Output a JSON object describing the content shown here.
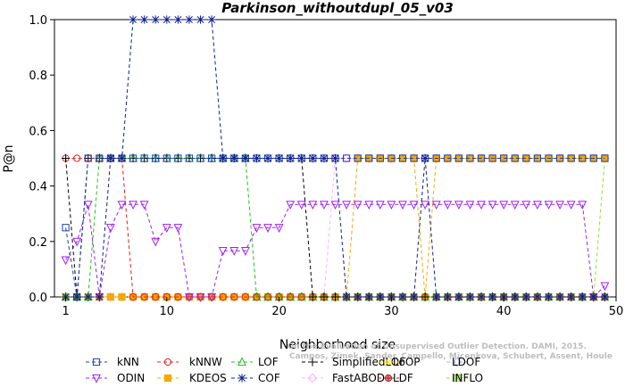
{
  "chart_data": {
    "type": "line",
    "title": "Parkinson_withoutdupl_05_v03",
    "xlabel": "Neighborhood size",
    "ylabel": "P@n",
    "xlim": [
      0,
      50
    ],
    "ylim": [
      0,
      1.0
    ],
    "x_ticks": [
      1,
      10,
      20,
      30,
      40,
      50
    ],
    "y_ticks": [
      0.0,
      0.2,
      0.4,
      0.6,
      0.8,
      1.0
    ],
    "y_tick_labels": [
      "0.0",
      "0.2",
      "0.4",
      "0.6",
      "0.8",
      "1.0"
    ],
    "x_tick_labels": [
      "1",
      "10",
      "20",
      "30",
      "40",
      "50"
    ],
    "grid": false,
    "legend_position": "bottom",
    "x": [
      1,
      2,
      3,
      4,
      5,
      6,
      7,
      8,
      9,
      10,
      11,
      12,
      13,
      14,
      15,
      16,
      17,
      18,
      19,
      20,
      21,
      22,
      23,
      24,
      25,
      26,
      27,
      28,
      29,
      30,
      31,
      32,
      33,
      34,
      35,
      36,
      37,
      38,
      39,
      40,
      41,
      42,
      43,
      44,
      45,
      46,
      47,
      48,
      49
    ],
    "series": [
      {
        "name": "kNN",
        "color": "#1a3fb0",
        "marker": "square",
        "values": [
          0.25,
          0,
          0.5,
          0.5,
          0.5,
          0.5,
          0.5,
          0.5,
          0.5,
          0.5,
          0.5,
          0.5,
          0.5,
          0.5,
          0.5,
          0.5,
          0.5,
          0.5,
          0.5,
          0.5,
          0.5,
          0.5,
          0.5,
          0.5,
          0.5,
          0.5,
          0.5,
          0.5,
          0.5,
          0.5,
          0.5,
          0.5,
          0.5,
          0.5,
          0.5,
          0.5,
          0.5,
          0.5,
          0.5,
          0.5,
          0.5,
          0.5,
          0.5,
          0.5,
          0.5,
          0.5,
          0.5,
          0.5,
          0.5
        ]
      },
      {
        "name": "kNNW",
        "color": "#e0201b",
        "marker": "circle",
        "values": [
          0.5,
          0.5,
          0.5,
          0.5,
          0.5,
          0.5,
          0,
          0,
          0,
          0,
          0,
          0,
          0,
          0,
          0,
          0,
          0,
          0,
          0,
          0,
          0,
          0,
          0,
          0,
          0,
          0,
          0,
          0,
          0,
          0,
          0,
          0,
          0,
          0,
          0,
          0,
          0,
          0,
          0,
          0,
          0,
          0,
          0,
          0,
          0,
          0,
          0,
          0,
          0
        ]
      },
      {
        "name": "LOF",
        "color": "#1fc21f",
        "marker": "triangle-up",
        "values": [
          0,
          0,
          0,
          0.5,
          0.5,
          0.5,
          0.5,
          0.5,
          0.5,
          0.5,
          0.5,
          0.5,
          0.5,
          0.5,
          0.5,
          0.5,
          0.5,
          0,
          0,
          0,
          0,
          0,
          0,
          0,
          0,
          0,
          0,
          0,
          0,
          0,
          0,
          0,
          0,
          0,
          0,
          0,
          0,
          0,
          0,
          0,
          0,
          0,
          0,
          0,
          0,
          0,
          0,
          0,
          0
        ]
      },
      {
        "name": "SimplifiedLOF",
        "color": "#000000",
        "marker": "plus",
        "values": [
          0.5,
          0,
          0.5,
          0.5,
          0.5,
          0.5,
          0.5,
          0.5,
          0.5,
          0.5,
          0.5,
          0.5,
          0.5,
          0.5,
          0.5,
          0.5,
          0.5,
          0.5,
          0.5,
          0.5,
          0.5,
          0.5,
          0,
          0,
          0,
          0,
          0,
          0,
          0,
          0,
          0,
          0,
          0,
          0,
          0,
          0,
          0,
          0,
          0,
          0,
          0,
          0,
          0,
          0,
          0,
          0,
          0,
          0,
          0
        ]
      },
      {
        "name": "LoOP",
        "color": "#ffe600",
        "marker": "x",
        "values": [
          0,
          0,
          0,
          0,
          0,
          0,
          0,
          0,
          0,
          0,
          0,
          0,
          0,
          0,
          0,
          0,
          0,
          0,
          0,
          0,
          0,
          0,
          0,
          0,
          0,
          0,
          0,
          0,
          0,
          0,
          0,
          0,
          0,
          0,
          0,
          0,
          0,
          0,
          0,
          0,
          0,
          0,
          0,
          0,
          0,
          0,
          0,
          0,
          0
        ]
      },
      {
        "name": "LDOF",
        "color": "#b0b0ff",
        "marker": "diamond",
        "values": [
          0,
          0,
          0,
          0,
          0,
          0,
          0,
          0,
          0,
          0,
          0,
          0,
          0,
          0,
          0,
          0,
          0,
          0,
          0,
          0,
          0,
          0,
          0,
          0,
          0,
          0,
          0,
          0,
          0,
          0,
          0,
          0,
          0,
          0,
          0,
          0,
          0,
          0,
          0,
          0,
          0,
          0,
          0,
          0,
          0,
          0,
          0,
          0,
          0
        ]
      },
      {
        "name": "ODIN",
        "color": "#a020f0",
        "marker": "triangle-down",
        "values": [
          0.1333,
          0.2,
          0.3333,
          0,
          0.25,
          0.3333,
          0.3333,
          0.3333,
          0.2,
          0.25,
          0.25,
          0,
          0,
          0,
          0.1667,
          0.1667,
          0.1667,
          0.25,
          0.25,
          0.25,
          0.3333,
          0.3333,
          0.3333,
          0.3333,
          0.3333,
          0.3333,
          0.3333,
          0.3333,
          0.3333,
          0.3333,
          0.3333,
          0.3333,
          0.3333,
          0.3333,
          0.3333,
          0.3333,
          0.3333,
          0.3333,
          0.3333,
          0.3333,
          0.3333,
          0.3333,
          0.3333,
          0.3333,
          0.3333,
          0.3333,
          0.3333,
          0,
          0.04
        ]
      },
      {
        "name": "KDEOS",
        "color": "#f5a800",
        "marker": "square-filled",
        "values": [
          0,
          0,
          0,
          0,
          0,
          0,
          0,
          0,
          0,
          0,
          0,
          0,
          0,
          0,
          0,
          0,
          0,
          0,
          0,
          0,
          0,
          0,
          0,
          0,
          0,
          0,
          0.5,
          0.5,
          0.5,
          0.5,
          0.5,
          0.5,
          0,
          0.5,
          0.5,
          0.5,
          0.5,
          0.5,
          0.5,
          0.5,
          0.5,
          0.5,
          0.5,
          0.5,
          0.5,
          0.5,
          0.5,
          0.5,
          0.5
        ]
      },
      {
        "name": "COF",
        "color": "#0f1f8f",
        "marker": "asterisk",
        "values": [
          0,
          0,
          0,
          0,
          0.5,
          0.5,
          1,
          1,
          1,
          1,
          1,
          1,
          1,
          1,
          0.5,
          0.5,
          0.5,
          0.5,
          0.5,
          0.5,
          0.5,
          0.5,
          0.5,
          0.5,
          0.5,
          0,
          0,
          0,
          0,
          0,
          0,
          0,
          0.5,
          0,
          0,
          0,
          0,
          0,
          0,
          0,
          0,
          0,
          0,
          0,
          0,
          0,
          0,
          0,
          0
        ]
      },
      {
        "name": "FastABOD",
        "color": "#ffb0ff",
        "marker": "diamond",
        "values": [
          0,
          0,
          0,
          0,
          0,
          0,
          0,
          0,
          0,
          0,
          0,
          0,
          0,
          0,
          0,
          0,
          0,
          0,
          0,
          0,
          0,
          0,
          0,
          0,
          0.5,
          0.5,
          0.5,
          0.5,
          0.5,
          0.5,
          0.5,
          0.5,
          0.5,
          0.5,
          0.5,
          0.5,
          0.5,
          0.5,
          0.5,
          0.5,
          0.5,
          0.5,
          0.5,
          0.5,
          0.5,
          0.5,
          0.5,
          0.5,
          0.5
        ]
      },
      {
        "name": "LDF",
        "color": "#b02020",
        "marker": "circle-cross",
        "values": [
          0,
          0,
          0,
          0,
          0,
          0,
          0,
          0,
          0,
          0,
          0,
          0,
          0,
          0,
          0,
          0,
          0,
          0,
          0,
          0,
          0,
          0,
          0,
          0,
          0,
          0,
          0,
          0,
          0,
          0,
          0,
          0,
          0,
          0,
          0,
          0,
          0,
          0,
          0,
          0,
          0,
          0,
          0,
          0,
          0,
          0,
          0,
          0,
          0
        ]
      },
      {
        "name": "INFLO",
        "color": "#90e030",
        "marker": "square-x",
        "values": [
          0,
          0,
          0,
          0,
          0,
          0,
          0,
          0,
          0,
          0,
          0,
          0,
          0,
          0,
          0,
          0,
          0,
          0,
          0,
          0,
          0,
          0,
          0,
          0,
          0,
          0,
          0,
          0,
          0,
          0,
          0,
          0,
          0,
          0,
          0,
          0,
          0,
          0,
          0,
          0,
          0,
          0,
          0,
          0,
          0,
          0,
          0,
          0,
          0.5
        ]
      }
    ]
  },
  "credit_lines": [
    "Campos, Zimek, Sander, Campello, Micenkova, Schubert, Assent, Houle",
    "On the Evaluation of Unsupervised Outlier Detection. DAMI, 2015."
  ]
}
